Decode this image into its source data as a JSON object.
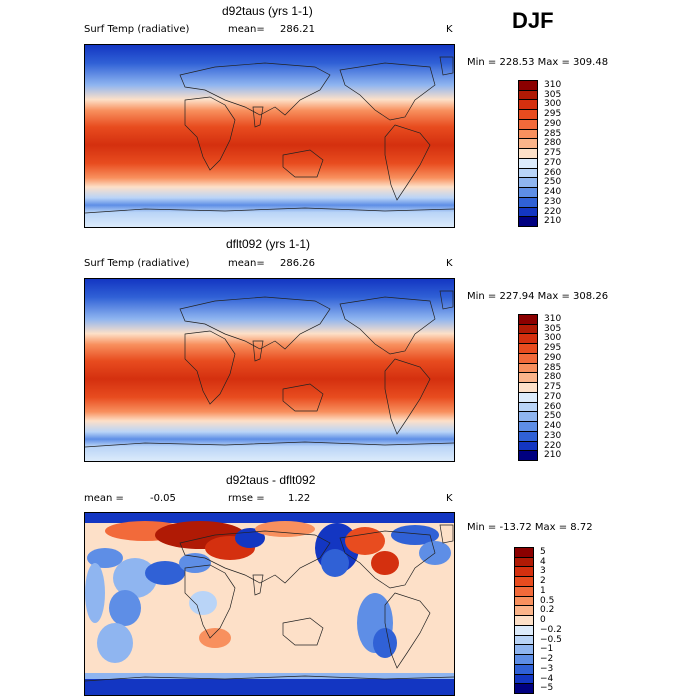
{
  "season": "DJF",
  "panels": [
    {
      "title": "d92taus (yrs 1-1)",
      "variable": "Surf Temp (radiative)",
      "mean_label": "mean=",
      "mean": "286.21",
      "units": "K",
      "minmax": "Min = 228.53 Max = 309.48",
      "colorbar_labels": [
        "310",
        "305",
        "300",
        "295",
        "290",
        "285",
        "280",
        "275",
        "270",
        "260",
        "250",
        "240",
        "230",
        "220",
        "210"
      ],
      "colorbar_colors": [
        "#8b0000",
        "#b01a05",
        "#d4300f",
        "#e84c1f",
        "#f26a3a",
        "#f8905e",
        "#fbb48a",
        "#fde0c8",
        "#dcebfb",
        "#b9d4f7",
        "#8fb5f0",
        "#5e8ee6",
        "#3061d6",
        "#1336c2",
        "#000080"
      ]
    },
    {
      "title": "dflt092 (yrs 1-1)",
      "variable": "Surf Temp (radiative)",
      "mean_label": "mean=",
      "mean": "286.26",
      "units": "K",
      "minmax": "Min = 227.94 Max = 308.26",
      "colorbar_labels": [
        "310",
        "305",
        "300",
        "295",
        "290",
        "285",
        "280",
        "275",
        "270",
        "260",
        "250",
        "240",
        "230",
        "220",
        "210"
      ],
      "colorbar_colors": [
        "#8b0000",
        "#b01a05",
        "#d4300f",
        "#e84c1f",
        "#f26a3a",
        "#f8905e",
        "#fbb48a",
        "#fde0c8",
        "#dcebfb",
        "#b9d4f7",
        "#8fb5f0",
        "#5e8ee6",
        "#3061d6",
        "#1336c2",
        "#000080"
      ]
    },
    {
      "title": "d92taus - dflt092",
      "mean_label": "mean =",
      "mean": "-0.05",
      "rmse_label": "rmse =",
      "rmse": "1.22",
      "units": "K",
      "minmax": "Min = -13.72 Max =    8.72",
      "colorbar_labels": [
        "5",
        "4",
        "3",
        "2",
        "1",
        "0.5",
        "0.2",
        "0",
        "−0.2",
        "−0.5",
        "−1",
        "−2",
        "−3",
        "−4",
        "−5"
      ],
      "colorbar_colors": [
        "#8b0000",
        "#b01a05",
        "#d4300f",
        "#e84c1f",
        "#f26a3a",
        "#f8905e",
        "#fbb48a",
        "#fde0c8",
        "#dcebfb",
        "#b9d4f7",
        "#8fb5f0",
        "#5e8ee6",
        "#3061d6",
        "#1336c2",
        "#000080"
      ]
    }
  ]
}
